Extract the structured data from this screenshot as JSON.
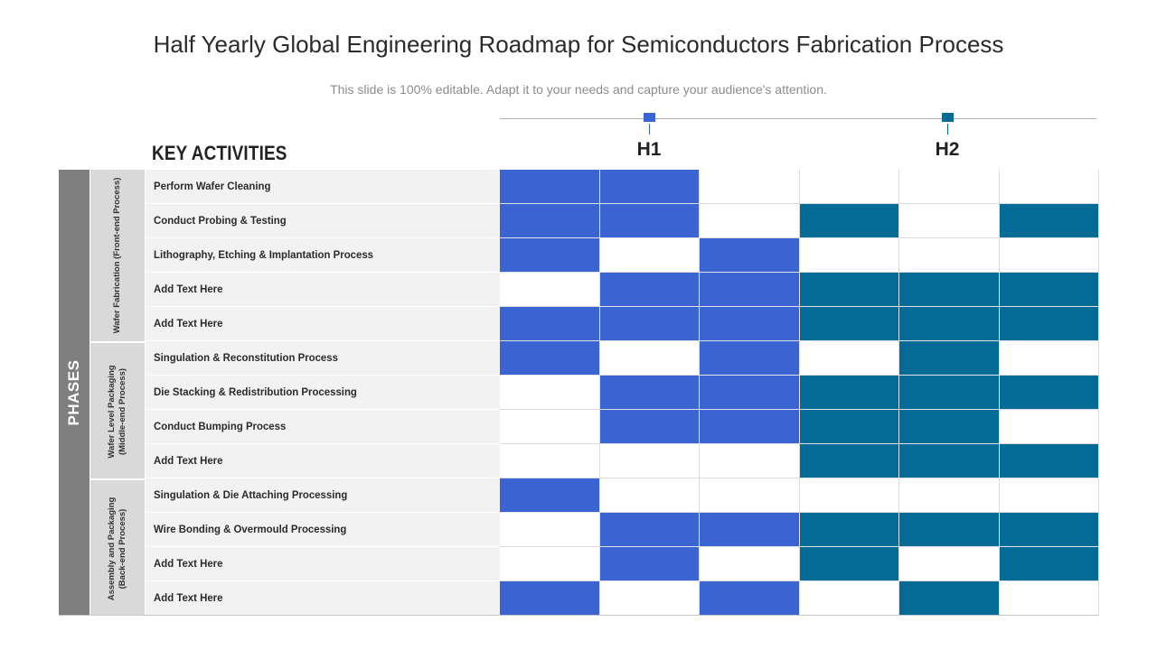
{
  "title": "Half Yearly Global Engineering Roadmap for Semiconductors Fabrication Process",
  "subtitle": "This slide is 100% editable. Adapt it to your needs and capture your audience's attention.",
  "key_activities_heading": "KEY ACTIVITIES",
  "phases_label": "PHASES",
  "halves": [
    {
      "label": "H1",
      "color": "#3A64D1"
    },
    {
      "label": "H2",
      "color": "#046A96"
    }
  ],
  "groups": [
    {
      "label": "Wafer Fabrication (Front-end Process)",
      "rows": 5
    },
    {
      "label": "Wafer Level Packaging (Middle-end Process)",
      "rows": 4
    },
    {
      "label": "Assembly and Packaging (Back-end Process)",
      "rows": 4
    }
  ],
  "activities": [
    {
      "label": "Perform Wafer Cleaning",
      "cells": [
        1,
        1,
        0,
        0,
        0,
        0
      ]
    },
    {
      "label": "Conduct Probing & Testing",
      "cells": [
        1,
        1,
        0,
        1,
        0,
        1
      ]
    },
    {
      "label": "Lithography, Etching & Implantation Process",
      "cells": [
        1,
        0,
        1,
        0,
        0,
        0
      ]
    },
    {
      "label": "Add Text Here",
      "cells": [
        0,
        1,
        1,
        1,
        1,
        1
      ]
    },
    {
      "label": "Add Text Here",
      "cells": [
        1,
        1,
        1,
        1,
        1,
        1
      ]
    },
    {
      "label": "Singulation & Reconstitution Process",
      "cells": [
        1,
        0,
        1,
        0,
        1,
        0
      ]
    },
    {
      "label": "Die Stacking & Redistribution Processing",
      "cells": [
        0,
        1,
        1,
        1,
        1,
        1
      ]
    },
    {
      "label": "Conduct Bumping Process",
      "cells": [
        0,
        1,
        1,
        1,
        1,
        0
      ]
    },
    {
      "label": "Add Text Here",
      "cells": [
        0,
        0,
        0,
        1,
        1,
        1
      ]
    },
    {
      "label": "Singulation & Die Attaching Processing",
      "cells": [
        1,
        0,
        0,
        0,
        0,
        0
      ]
    },
    {
      "label": "Wire Bonding & Overmould Processing",
      "cells": [
        0,
        1,
        1,
        1,
        1,
        1
      ]
    },
    {
      "label": "Add Text Here",
      "cells": [
        0,
        1,
        0,
        1,
        0,
        1
      ]
    },
    {
      "label": "Add Text Here",
      "cells": [
        1,
        0,
        1,
        0,
        1,
        0
      ]
    }
  ]
}
